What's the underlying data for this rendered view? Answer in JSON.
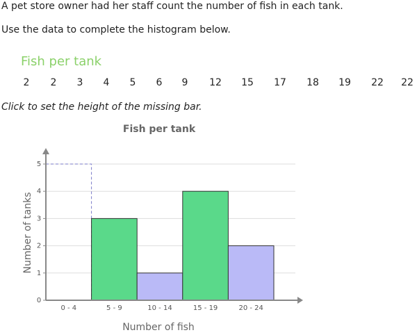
{
  "intro": "A pet store owner had her staff count the number of fish in each tank.",
  "task": "Use the data to complete the histogram below.",
  "data_table": {
    "title": "Fish per tank",
    "values": [
      2,
      2,
      3,
      4,
      5,
      6,
      9,
      12,
      15,
      17,
      18,
      19,
      22,
      22
    ]
  },
  "instruction": "Click to set the height of the missing bar.",
  "chart_data": {
    "type": "bar",
    "title": "Fish per tank",
    "x_label": "Number of fish",
    "y_label": "Number of tanks",
    "categories": [
      "0 - 4",
      "5 - 9",
      "10 - 14",
      "15 - 19",
      "20 - 24"
    ],
    "values": [
      null,
      3,
      1,
      4,
      2
    ],
    "colors": [
      "#5ad98a",
      "#5ad98a",
      "#babaf7",
      "#5ad98a",
      "#babaf7"
    ],
    "ylim": [
      0,
      5
    ],
    "yticks": [
      0,
      1,
      2,
      3,
      4,
      5
    ],
    "grid": true
  }
}
